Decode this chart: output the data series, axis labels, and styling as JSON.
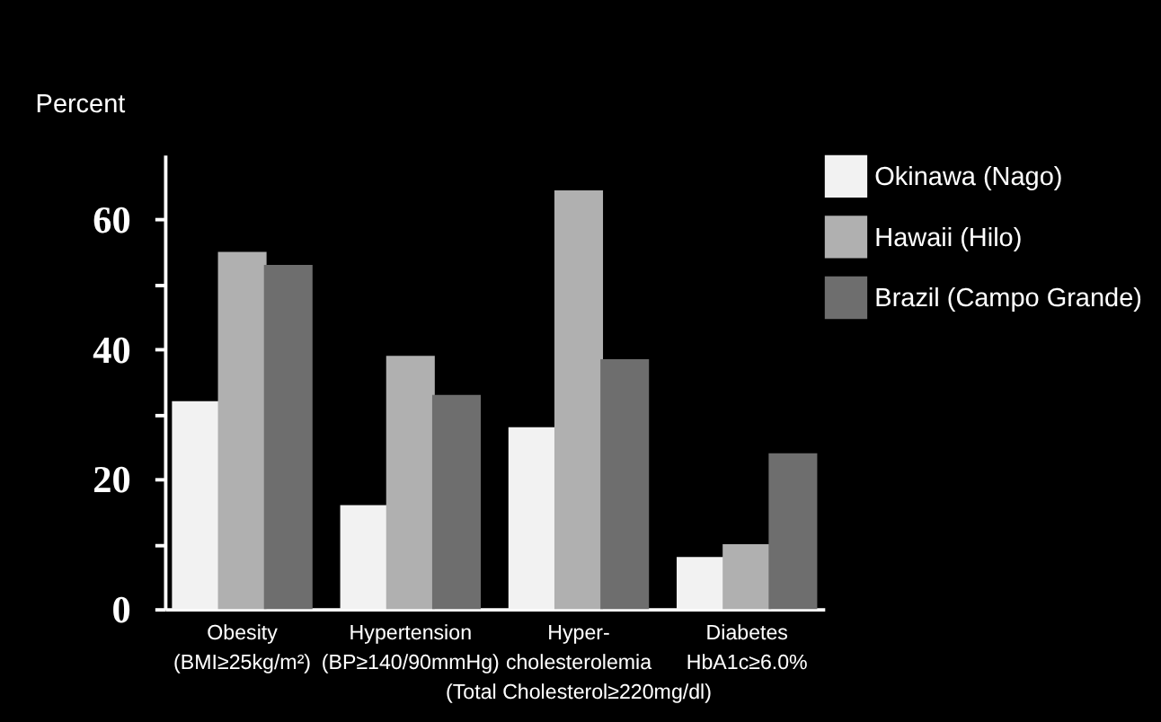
{
  "chart_data": {
    "type": "bar",
    "ylabel": "Percent",
    "categories": [
      "Obesity\n(BMI≥25kg/m²)",
      "Hypertension\n(BP≥140/90mmHg)",
      "Hyper-\ncholesterolemia\n(Total Cholesterol≥220mg/dl)",
      "Diabetes\nHbA1c≥6.0%"
    ],
    "series": [
      {
        "name": "Okinawa (Nago)",
        "color": "#f2f2f2",
        "values": [
          32,
          16,
          28,
          8
        ]
      },
      {
        "name": "Hawaii (Hilo)",
        "color": "#b0b0b0",
        "values": [
          55,
          39,
          64.5,
          10
        ]
      },
      {
        "name": "Brazil (Campo Grande)",
        "color": "#6e6e6e",
        "values": [
          53,
          33,
          38.5,
          24
        ]
      }
    ],
    "ylim": [
      0,
      70
    ],
    "yticks": [
      0,
      {
        "value": 10,
        "label": null
      },
      20,
      {
        "value": 30,
        "label": null
      },
      40,
      {
        "value": 50,
        "label": null
      },
      60
    ],
    "grid": false,
    "legend": "top right"
  }
}
